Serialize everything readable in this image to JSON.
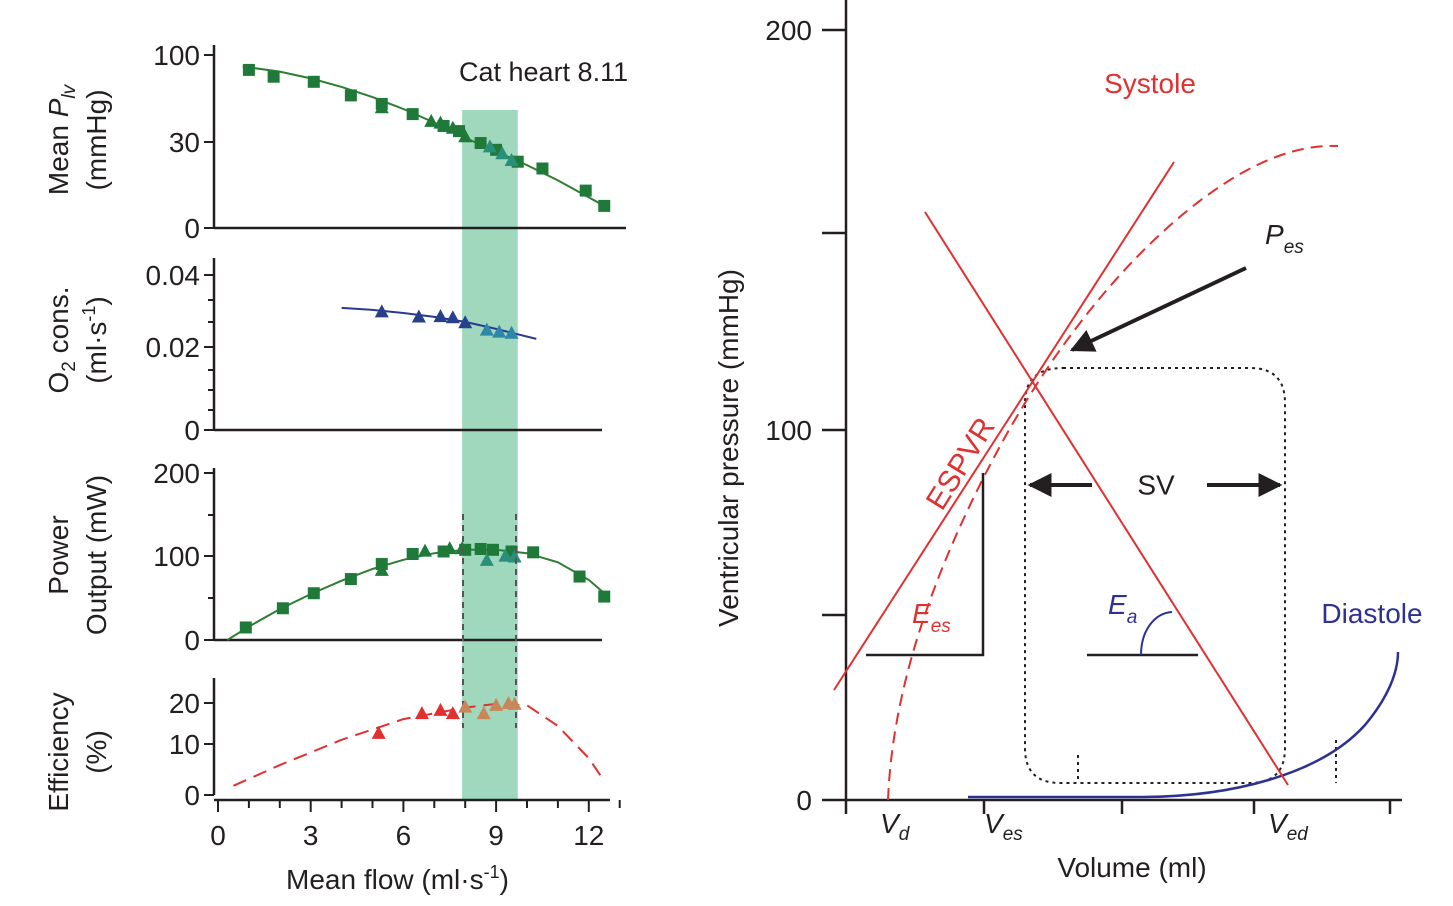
{
  "colors": {
    "green": "#2e7d32",
    "green_marker": "#1f7a3a",
    "teal_marker": "#2a8f7a",
    "blue": "#2b3990",
    "blue_marker": "#27408b",
    "light_blue_marker": "#2e86ab",
    "red": "#e03030",
    "orange_marker": "#c8875a",
    "band": "#9fd8bd",
    "axis": "#231f20",
    "es_red": "#d9262c",
    "diastole_blue": "#2e3192"
  },
  "left_panel": {
    "annotation": "Cat heart 8.11",
    "x_axis": {
      "label": "Mean flow (ml·s",
      "label_sup": "-1",
      "label_end": ")",
      "ticks": [
        "0",
        "3",
        "6",
        "9",
        "12"
      ],
      "range": [
        0,
        13
      ]
    },
    "highlight_band": {
      "x_from": 7.9,
      "x_to": 9.7
    },
    "panels": [
      {
        "id": "mean-plv",
        "ylabel_line1": "Mean ",
        "ylabel_italic": "P",
        "ylabel_sub": "lv",
        "ylabel_line2": "(mmHg)",
        "y_ticks": [
          "100",
          "30",
          "0"
        ]
      },
      {
        "id": "o2-cons",
        "ylabel_line1_a": "O",
        "ylabel_line1_sub": "2",
        "ylabel_line1_b": " cons.",
        "ylabel_line2_a": "(ml·s",
        "ylabel_line2_sup": "-1",
        "ylabel_line2_b": ")",
        "y_ticks": [
          "0.04",
          "0.02",
          "0"
        ]
      },
      {
        "id": "power",
        "ylabel_line1": "Power",
        "ylabel_line2": "Output (mW)",
        "y_ticks": [
          "200",
          "100",
          "0"
        ]
      },
      {
        "id": "efficiency",
        "ylabel_line1": "Efficiency",
        "ylabel_line2": "(%)",
        "y_ticks": [
          "20",
          "10",
          "0"
        ]
      }
    ]
  },
  "chart_data": [
    {
      "type": "scatter",
      "title": "",
      "xlabel": "Mean flow (ml·s-1)",
      "ylabel": "Mean Plv (mmHg)",
      "series": [
        {
          "marker": "square",
          "x": [
            1.0,
            1.8,
            3.1,
            4.3,
            5.3,
            6.3,
            7.3,
            7.8,
            8.5,
            9.0,
            9.7,
            10.5,
            11.9,
            12.5
          ],
          "y": [
            93,
            89,
            86,
            78,
            73,
            67,
            60,
            57,
            50,
            46,
            39,
            35,
            22,
            13
          ]
        },
        {
          "marker": "triangle",
          "x": [
            5.3,
            6.9,
            7.2,
            7.6,
            8.0,
            8.8,
            9.2,
            9.5
          ],
          "y": [
            71,
            63,
            62,
            59,
            54,
            48,
            44,
            40
          ]
        }
      ],
      "fit": {
        "x": [
          0.8,
          2,
          3,
          4,
          5,
          6,
          7,
          8,
          9,
          10,
          11,
          12,
          12.5
        ],
        "y": [
          95,
          92,
          88,
          83,
          77,
          70,
          62,
          53,
          45,
          37,
          28,
          18,
          13
        ]
      }
    },
    {
      "type": "scatter",
      "title": "",
      "xlabel": "Mean flow (ml·s-1)",
      "ylabel": "O2 cons. (ml·s-1)",
      "series": [
        {
          "marker": "triangle",
          "x": [
            5.3,
            6.5,
            7.2,
            7.6,
            8.0,
            8.7,
            9.1,
            9.5
          ],
          "y": [
            0.0306,
            0.0293,
            0.0294,
            0.0291,
            0.0278,
            0.0259,
            0.0254,
            0.0251
          ]
        }
      ],
      "fit": {
        "x": [
          4,
          5,
          6,
          7,
          8,
          9,
          10.3
        ],
        "y": [
          0.0315,
          0.031,
          0.0302,
          0.0292,
          0.0279,
          0.0261,
          0.0235
        ]
      }
    },
    {
      "type": "scatter",
      "title": "",
      "xlabel": "Mean flow (ml·s-1)",
      "ylabel": "Power Output (mW)",
      "series": [
        {
          "marker": "square",
          "x": [
            0.9,
            2.1,
            3.1,
            4.3,
            5.3,
            6.3,
            7.3,
            8.0,
            8.5,
            8.9,
            9.5,
            10.2,
            11.7,
            12.5
          ],
          "y": [
            15,
            38,
            56,
            73,
            91,
            103,
            106,
            108,
            109,
            108,
            106,
            105,
            76,
            52
          ]
        },
        {
          "marker": "triangle",
          "x": [
            5.3,
            6.7,
            7.5,
            7.9,
            8.7,
            9.3,
            9.6
          ],
          "y": [
            84,
            107,
            110,
            110,
            96,
            101,
            100
          ]
        }
      ],
      "fit": {
        "x": [
          0.3,
          1,
          2,
          3,
          4,
          5,
          6,
          7,
          8,
          9,
          10,
          11,
          12,
          12.5
        ],
        "y": [
          0,
          16,
          37,
          55,
          71,
          85,
          96,
          104,
          108,
          108,
          104,
          93,
          72,
          56
        ]
      }
    },
    {
      "type": "scatter",
      "title": "",
      "xlabel": "Mean flow (ml·s-1)",
      "ylabel": "Efficiency (%)",
      "series": [
        {
          "marker": "triangle",
          "x": [
            5.2,
            6.6,
            7.2,
            7.6,
            8.0,
            8.6,
            9.0,
            9.4,
            9.6
          ],
          "y": [
            13.5,
            17.8,
            18.5,
            17.8,
            19.2,
            17.8,
            19.6,
            20.0,
            19.8
          ]
        }
      ],
      "fit_dashed": {
        "x": [
          0.5,
          2,
          4,
          6,
          8,
          9,
          10,
          11,
          12,
          12.5
        ],
        "y": [
          2,
          6.5,
          12,
          16.5,
          19,
          19.8,
          19.5,
          15,
          8,
          3
        ]
      }
    },
    {
      "type": "line",
      "title": "",
      "xlabel": "Volume (ml)",
      "ylabel": "Ventricular pressure (mmHg)",
      "ylim": [
        0,
        200
      ],
      "y_ticks": [
        "0",
        "100",
        "200"
      ],
      "x_tick_labels": [
        {
          "italic": "V",
          "sub": "d"
        },
        {
          "italic": "V",
          "sub": "es"
        },
        {
          "italic": "V",
          "sub": "ed"
        }
      ],
      "labels": {
        "systole": "Systole",
        "diastole": "Diastole",
        "espvr": "ESPVR",
        "pes_italic": "P",
        "pes_sub": "es",
        "ees_italic": "E",
        "ees_sub": "es",
        "ea_italic": "E",
        "ea_sub": "a",
        "sv": "SV"
      }
    }
  ]
}
